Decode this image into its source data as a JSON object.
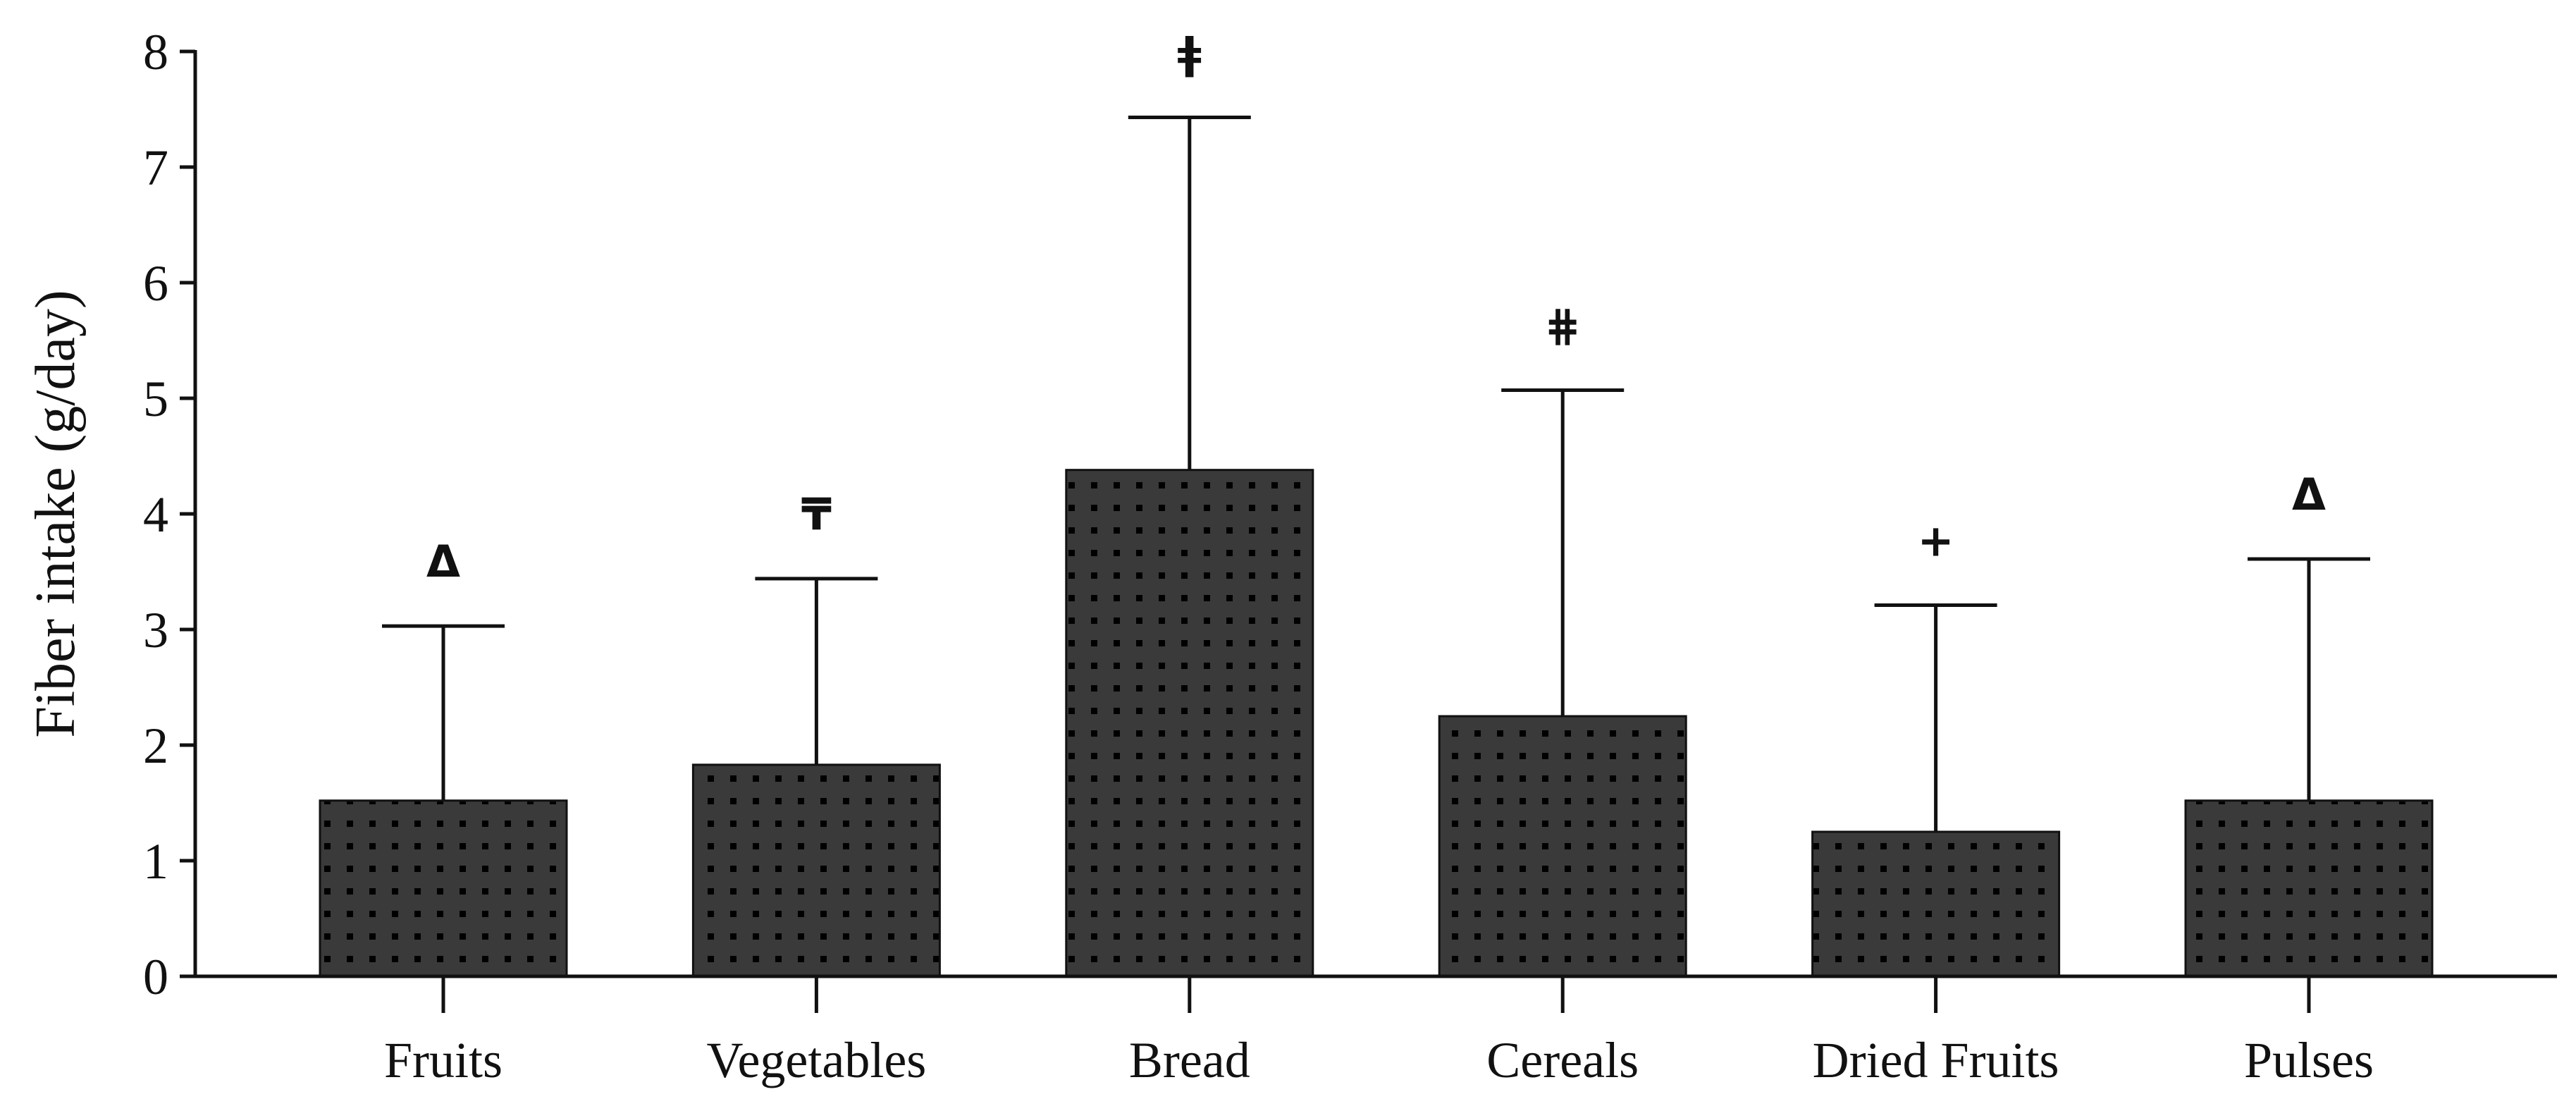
{
  "chart_data": {
    "type": "bar",
    "title": "",
    "xlabel": "",
    "ylabel": "Fiber intake (g/day)",
    "ylim": [
      0,
      8
    ],
    "yticks": [
      "0",
      "1",
      "2",
      "3",
      "4",
      "5",
      "6",
      "7",
      "8"
    ],
    "categories": [
      "Fruits",
      "Vegetables",
      "Bread",
      "Cereals",
      "Dried Fruits",
      "Pulses"
    ],
    "values": [
      1.52,
      1.83,
      4.38,
      2.25,
      1.25,
      1.52
    ],
    "error_upper": [
      3.03,
      3.44,
      7.43,
      5.07,
      3.21,
      3.61
    ],
    "significance_markers": [
      "Δ",
      "₸",
      "ǂ",
      "⋕",
      "+",
      "Δ"
    ],
    "grid": false,
    "bar_fill": "#3a3a3a",
    "dot_color": "#000000",
    "axis_color": "#111111"
  }
}
